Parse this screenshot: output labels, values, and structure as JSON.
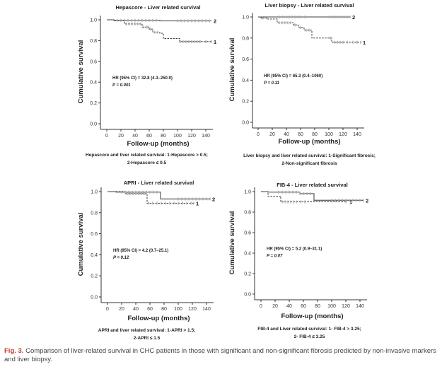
{
  "figure_caption": {
    "label": "Fig. 3.",
    "text": "Comparison of liver-related survival in CHC patients in those with significant and non-significant fibrosis predicted by non-invasive markers and liver biopsy."
  },
  "colors": {
    "series_1": "#222222",
    "series_2": "#666666",
    "censor": "#aaaaaa"
  },
  "chart_data": [
    {
      "type": "line",
      "title": "Hepascore - Liver related survival",
      "xlabel": "Follow-up (months)",
      "ylabel": "Cumulative survival",
      "xlim": [
        0,
        150
      ],
      "ylim": [
        0,
        1.0
      ],
      "xticks": [
        "0",
        "20",
        "40",
        "60",
        "80",
        "100",
        "120",
        "140"
      ],
      "yticks": [
        "0.0",
        "0.2",
        "0.4",
        "0.6",
        "0.8",
        "1.0"
      ],
      "annotation": [
        "HR (95% CI) = 32.8 (4.3–250.9)",
        "P = 0.001"
      ],
      "caption": [
        "Hepascore and liver related survival: 1-Hepascore > 0.5;",
        "2-Hepascore ≤ 0.5"
      ],
      "series": [
        {
          "name": "1",
          "style": "dashed",
          "steps": [
            [
              0,
              1
            ],
            [
              10,
              0.99
            ],
            [
              25,
              0.96
            ],
            [
              50,
              0.93
            ],
            [
              60,
              0.91
            ],
            [
              65,
              0.88
            ],
            [
              75,
              0.87
            ],
            [
              80,
              0.82
            ],
            [
              103,
              0.79
            ],
            [
              148,
              0.79
            ]
          ],
          "censored": [
            28,
            32,
            36,
            40,
            44,
            48,
            52,
            56,
            58,
            62,
            68,
            72,
            104,
            108,
            112,
            116,
            120,
            124,
            128,
            132,
            140,
            148
          ]
        },
        {
          "name": "2",
          "style": "solid",
          "steps": [
            [
              0,
              1
            ],
            [
              10,
              0.995
            ],
            [
              75,
              0.99
            ],
            [
              148,
              0.99
            ]
          ],
          "censored": [
            15,
            20,
            25,
            30,
            35,
            40,
            45,
            50,
            55,
            60,
            65,
            70,
            100,
            105,
            110,
            115,
            120,
            125,
            130,
            135,
            140,
            145
          ]
        }
      ]
    },
    {
      "type": "line",
      "title": "Liver biopsy - Liver related survival",
      "xlabel": "Follow-up (months)",
      "ylabel": "Cumulative survival",
      "xlim": [
        0,
        150
      ],
      "ylim": [
        0,
        1.0
      ],
      "xticks": [
        "0",
        "20",
        "40",
        "60",
        "80",
        "100",
        "120",
        "140"
      ],
      "yticks": [
        "0.0",
        "0.2",
        "0.4",
        "0.6",
        "0.8",
        "1.0"
      ],
      "annotation": [
        "HR (95% CI) = 65.3 (0.4–1060)",
        "P = 0.11"
      ],
      "caption": [
        "Liver biopsy and liver related survival: 1-Significant fibrosis;",
        "2-Non-significant fibrosis"
      ],
      "series": [
        {
          "name": "1",
          "style": "dashed",
          "steps": [
            [
              0,
              1
            ],
            [
              4,
              0.99
            ],
            [
              12,
              0.98
            ],
            [
              27,
              0.945
            ],
            [
              50,
              0.925
            ],
            [
              57,
              0.9
            ],
            [
              65,
              0.875
            ],
            [
              76,
              0.8
            ],
            [
              104,
              0.76
            ],
            [
              145,
              0.76
            ]
          ],
          "censored": [
            6,
            30,
            34,
            38,
            42,
            46,
            52,
            60,
            68,
            72,
            102,
            108,
            112,
            116,
            120,
            126,
            134,
            140,
            145
          ]
        },
        {
          "name": "2",
          "style": "solid",
          "steps": [
            [
              0,
              1
            ],
            [
              130,
              1
            ]
          ],
          "censored": [
            30,
            35,
            40,
            44,
            48,
            52,
            56,
            60,
            66,
            102,
            106,
            110,
            114,
            118,
            122,
            126,
            130
          ]
        }
      ]
    },
    {
      "type": "line",
      "title": "APRI - Liver related survival",
      "xlabel": "Follow-up (months)",
      "ylabel": "Cumulative survival",
      "xlim": [
        0,
        150
      ],
      "ylim": [
        0,
        1.0
      ],
      "xticks": [
        "0",
        "20",
        "40",
        "60",
        "80",
        "100",
        "120",
        "140"
      ],
      "yticks": [
        "0.0",
        "0.2",
        "0.4",
        "0.6",
        "0.8",
        "1.0"
      ],
      "annotation": [
        "HR (95% CI) = 4.2 (0.7–25.1)",
        "P = 0.12"
      ],
      "caption": [
        "APRI and liver related survival: 1-APRI > 1.5;",
        "2-APRI ≤ 1.5"
      ],
      "series": [
        {
          "name": "1",
          "style": "dashed",
          "steps": [
            [
              0,
              1
            ],
            [
              25,
              0.98
            ],
            [
              56,
              0.89
            ],
            [
              122,
              0.89
            ]
          ],
          "censored": [
            28,
            32,
            36,
            40,
            44,
            48,
            52,
            58,
            64,
            70,
            76,
            82,
            88,
            94,
            100,
            106,
            112,
            118,
            122
          ]
        },
        {
          "name": "2",
          "style": "solid",
          "steps": [
            [
              0,
              1
            ],
            [
              12,
              0.995
            ],
            [
              75,
              0.93
            ],
            [
              145,
              0.93
            ]
          ],
          "censored": [
            20,
            25,
            30,
            35,
            40,
            45,
            50,
            55,
            60,
            65,
            70,
            100,
            105,
            110,
            115,
            120,
            125,
            130,
            135,
            140,
            145
          ]
        }
      ]
    },
    {
      "type": "line",
      "title": "FIB-4 - Liver related survival",
      "xlabel": "Follow-up (months)",
      "ylabel": "Cumulative survival",
      "xlim": [
        0,
        150
      ],
      "ylim": [
        0,
        1.0
      ],
      "xticks": [
        "0",
        "20",
        "40",
        "60",
        "80",
        "100",
        "120",
        "140"
      ],
      "yticks": [
        "0.0",
        "0.2",
        "0.4",
        "0.6",
        "0.8",
        "1.0"
      ],
      "annotation": [
        "HR (95% CI) = 5.2 (0.9–31.1)",
        "P = 0.07"
      ],
      "caption": [
        "FIB-4 and Liver related survival: 1- FIB-4 > 3.25;",
        "2- FIB-4 ≤ 3.25"
      ],
      "series": [
        {
          "name": "1",
          "style": "dashed",
          "steps": [
            [
              0,
              1
            ],
            [
              10,
              0.955
            ],
            [
              28,
              0.9
            ],
            [
              122,
              0.9
            ]
          ],
          "censored": [
            30,
            34,
            38,
            42,
            46,
            50,
            56,
            62,
            120
          ]
        },
        {
          "name": "2",
          "style": "solid",
          "steps": [
            [
              0,
              1
            ],
            [
              10,
              0.995
            ],
            [
              55,
              0.98
            ],
            [
              75,
              0.915
            ],
            [
              145,
              0.915
            ]
          ],
          "censored": [
            25,
            30,
            35,
            40,
            45,
            50,
            55,
            60,
            65,
            70,
            100,
            105,
            110,
            115,
            120,
            125,
            130,
            135,
            140,
            145
          ]
        }
      ]
    }
  ]
}
